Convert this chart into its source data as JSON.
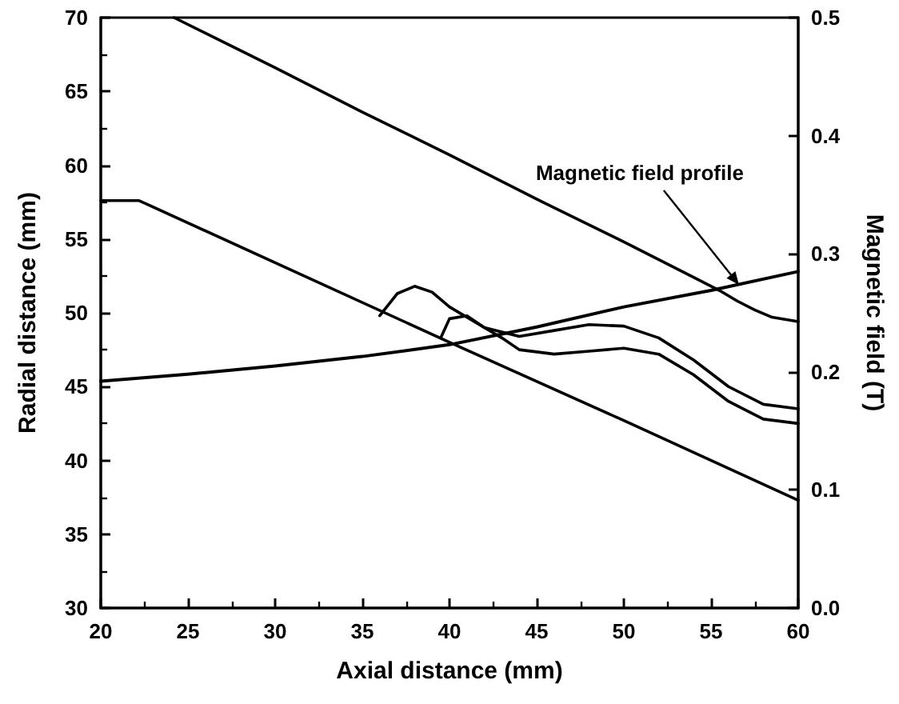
{
  "chart_data": {
    "type": "line",
    "xlabel": "Axial distance (mm)",
    "ylabel": "Radial distance (mm)",
    "y2label": "Magnetic field (T)",
    "annotations": [
      {
        "text": "Magnetic field profile",
        "x": 56.6,
        "y": 51.9
      }
    ],
    "xlim": [
      20,
      60
    ],
    "xticks": [
      20,
      25,
      30,
      35,
      40,
      45,
      50,
      55,
      60
    ],
    "ylim": [
      30,
      70
    ],
    "yticks": [
      30,
      35,
      40,
      45,
      50,
      55,
      60,
      65,
      70
    ],
    "y2lim": [
      0,
      0.5
    ],
    "y2ticks": [
      {
        "value": 0,
        "label": "0.0"
      },
      0.1,
      0.2,
      0.3,
      0.4,
      0.5
    ],
    "marker": "none",
    "line_style": "solid",
    "series": [
      {
        "color": "#000000",
        "x": [
          24.2,
          30,
          35,
          40,
          45,
          50,
          54,
          55.5,
          56.5,
          57.5,
          58.5,
          60
        ],
        "values": [
          70,
          66.6,
          63.6,
          60.7,
          57.7,
          54.8,
          52.4,
          51.5,
          50.8,
          50.2,
          49.7,
          49.4
        ]
      },
      {
        "color": "#000000",
        "x": [
          20,
          22.2,
          30,
          40,
          50,
          60
        ],
        "values": [
          57.6,
          57.6,
          53.4,
          48,
          42.7,
          37.3
        ]
      },
      {
        "color": "#000000",
        "axis": "y2",
        "x": [
          20,
          25,
          30,
          35,
          40,
          45,
          50,
          55,
          60
        ],
        "values": [
          0.192,
          0.198,
          0.205,
          0.213,
          0.223,
          0.238,
          0.255,
          0.269,
          0.285
        ]
      },
      {
        "color": "#000000",
        "x": [
          36,
          37,
          38,
          39,
          40,
          42,
          44,
          46,
          48,
          50,
          52,
          54,
          56,
          58,
          60
        ],
        "values": [
          49.8,
          51.3,
          51.8,
          51.4,
          50.4,
          49,
          48.4,
          48.8,
          49.2,
          49.1,
          48.3,
          46.8,
          45,
          43.8,
          43.5
        ]
      },
      {
        "color": "#000000",
        "x": [
          39.5,
          40,
          41,
          42,
          43,
          44,
          46,
          48,
          50,
          52,
          54,
          56,
          58,
          60
        ],
        "values": [
          48.3,
          49.6,
          49.8,
          49,
          48.3,
          47.5,
          47.2,
          47.4,
          47.6,
          47.2,
          45.8,
          44,
          42.8,
          42.5
        ]
      }
    ]
  }
}
